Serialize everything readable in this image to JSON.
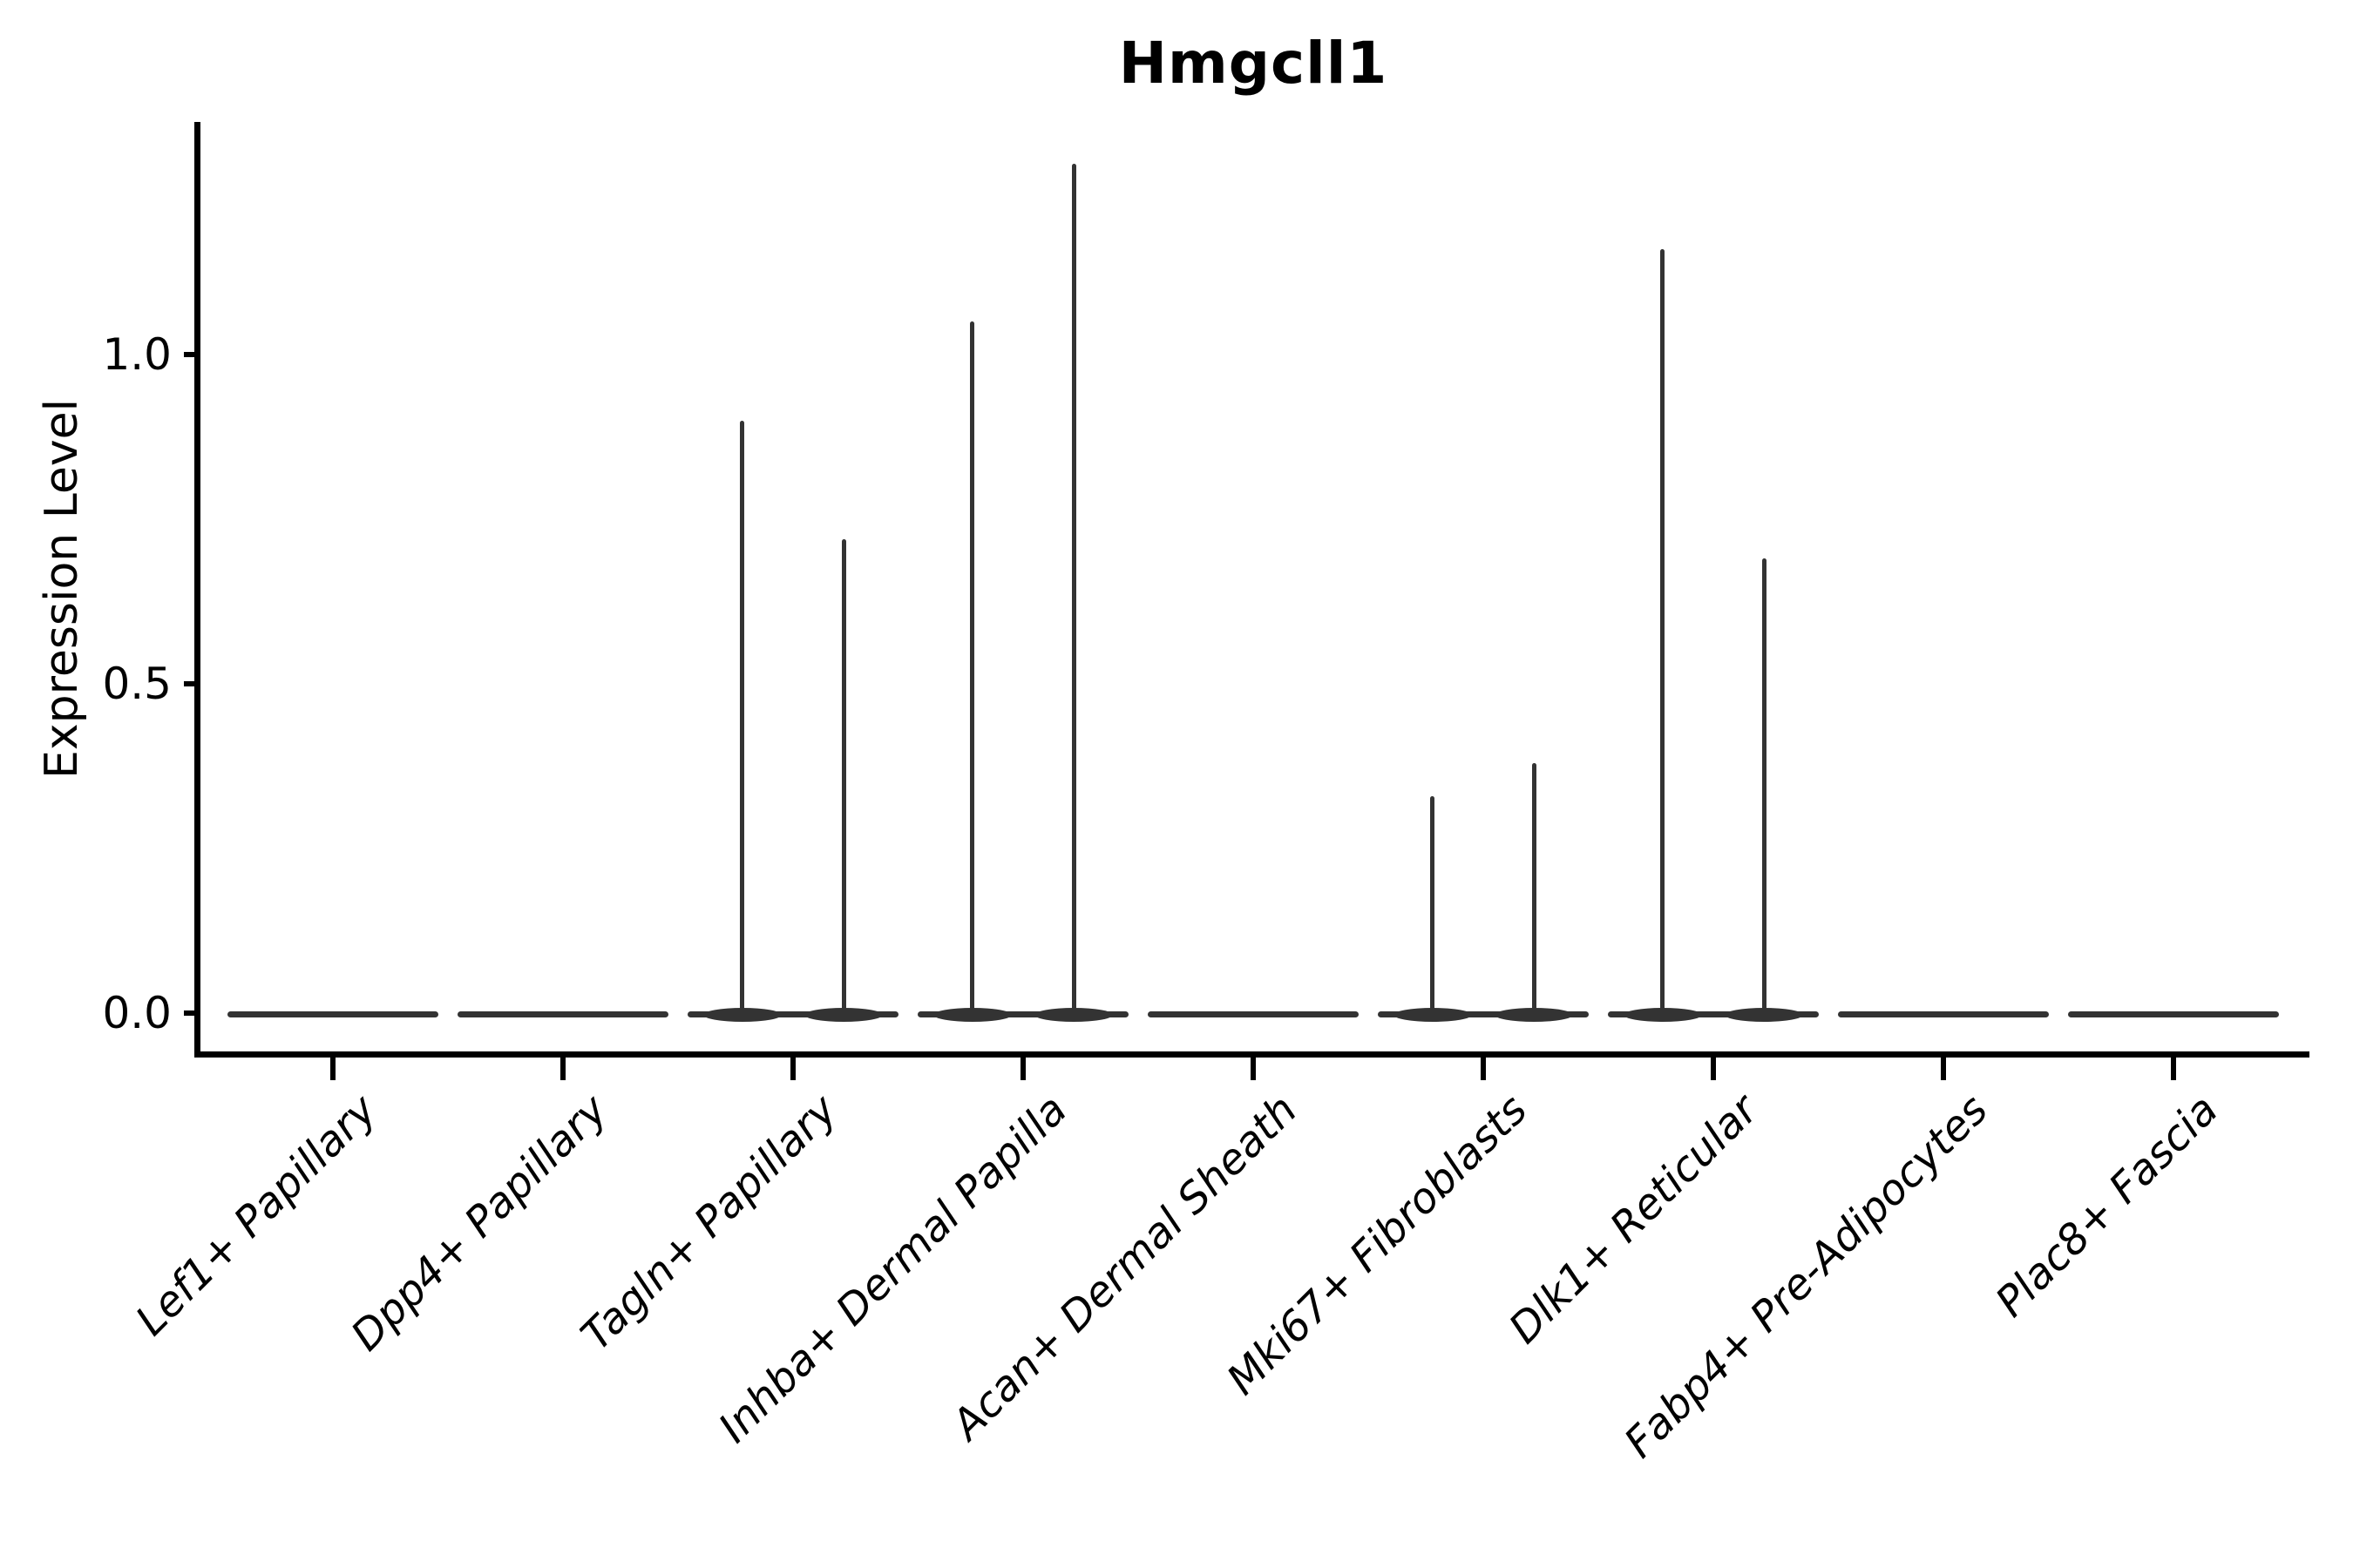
{
  "chart_data": {
    "type": "violin",
    "title": "Hmgcll1",
    "ylabel": "Expression Level",
    "xlabel": "",
    "grid": false,
    "legend": "none",
    "ylim": [
      -0.058,
      1.353
    ],
    "yticks": [
      {
        "label": "0.0",
        "value": 0.0
      },
      {
        "label": "0.5",
        "value": 0.5
      },
      {
        "label": "1.0",
        "value": 1.0
      }
    ],
    "xtick_rotation_deg": 45,
    "xtick_font_style": "italic",
    "violin_width_frac": 0.92,
    "categories": [
      "Lef1+ Papillary",
      "Dpp4+ Papillary",
      "Tagln+ Papillary",
      "Inhba+ Dermal Papilla",
      "Acan+ Dermal Sheath",
      "Mki67+ Fibroblasts",
      "Dlk1+ Reticular",
      "Fabp4+ Pre-Adipocytes",
      "Plac8+ Fascia"
    ],
    "series": [
      {
        "category": "Lef1+ Papillary",
        "baseline": 0.0,
        "spikes": []
      },
      {
        "category": "Dpp4+ Papillary",
        "baseline": 0.0,
        "spikes": []
      },
      {
        "category": "Tagln+ Papillary",
        "baseline": 0.0,
        "spikes": [
          {
            "offset_frac": -0.22,
            "max": 0.9
          },
          {
            "offset_frac": 0.22,
            "max": 0.72
          }
        ]
      },
      {
        "category": "Inhba+ Dermal Papilla",
        "baseline": 0.0,
        "spikes": [
          {
            "offset_frac": -0.22,
            "max": 1.05
          },
          {
            "offset_frac": 0.22,
            "max": 1.29
          }
        ]
      },
      {
        "category": "Acan+ Dermal Sheath",
        "baseline": 0.0,
        "spikes": []
      },
      {
        "category": "Mki67+ Fibroblasts",
        "baseline": 0.0,
        "spikes": [
          {
            "offset_frac": -0.22,
            "max": 0.33
          },
          {
            "offset_frac": 0.22,
            "max": 0.38
          }
        ]
      },
      {
        "category": "Dlk1+ Reticular",
        "baseline": 0.0,
        "spikes": [
          {
            "offset_frac": -0.22,
            "max": 1.16
          },
          {
            "offset_frac": 0.22,
            "max": 0.69
          }
        ]
      },
      {
        "category": "Fabp4+ Pre-Adipocytes",
        "baseline": 0.0,
        "spikes": []
      },
      {
        "category": "Plac8+ Fascia",
        "baseline": 0.0,
        "spikes": []
      }
    ],
    "colors": {
      "violin_edge": "#333333",
      "spines": "#000000",
      "text": "#000000",
      "background": "#ffffff"
    }
  }
}
